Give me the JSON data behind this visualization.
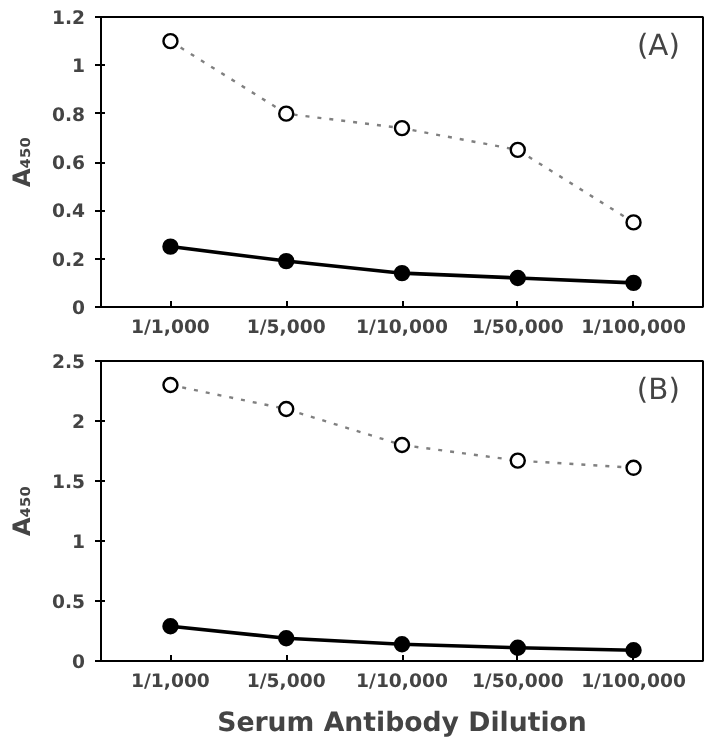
{
  "chart_data": [
    {
      "type": "line",
      "categories": [
        "1/1,000",
        "1/5,000",
        "1/10,000",
        "1/50,000",
        "1/100,000"
      ],
      "ylabel": "A₄₅₀",
      "ylim": [
        0,
        1.2
      ],
      "yticks": [
        0,
        0.2,
        0.4,
        0.6,
        0.8,
        1,
        1.2
      ],
      "annotations": [
        "(A)"
      ],
      "grid": false,
      "series": [
        {
          "color": "#808080",
          "line_style": "dotted",
          "marker": "circle",
          "values": [
            1.1,
            0.8,
            0.74,
            0.65,
            0.35
          ]
        },
        {
          "color": "#000000",
          "line_style": "solid",
          "marker": "circle",
          "values": [
            0.25,
            0.19,
            0.14,
            0.12,
            0.1
          ]
        }
      ]
    },
    {
      "type": "line",
      "categories": [
        "1/1,000",
        "1/5,000",
        "1/10,000",
        "1/50,000",
        "1/100,000"
      ],
      "xlabel": "Serum Antibody Dilution",
      "ylabel": "A₄₅₀",
      "ylim": [
        0,
        2.5
      ],
      "yticks": [
        0,
        0.5,
        1,
        1.5,
        2,
        2.5
      ],
      "annotations": [
        "(B)"
      ],
      "grid": false,
      "series": [
        {
          "color": "#808080",
          "line_style": "dotted",
          "marker": "circle",
          "values": [
            2.3,
            2.1,
            1.8,
            1.67,
            1.61
          ]
        },
        {
          "color": "#000000",
          "line_style": "solid",
          "marker": "circle",
          "values": [
            0.29,
            0.19,
            0.14,
            0.11,
            0.09
          ]
        }
      ]
    }
  ]
}
